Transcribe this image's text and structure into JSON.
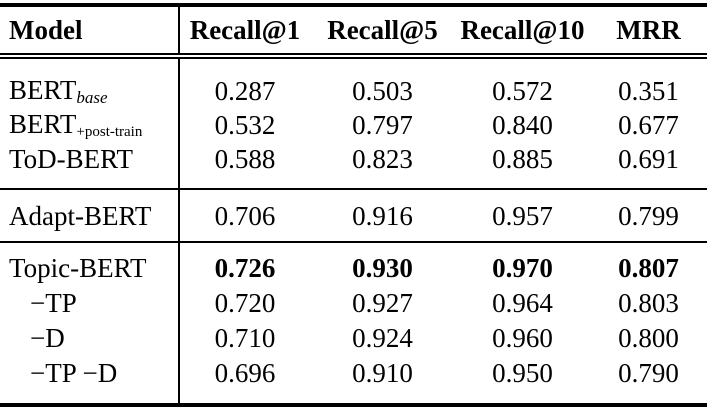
{
  "page": {
    "background": "#ffffff",
    "text_color": "#000000",
    "rule_color": "#000000"
  },
  "table": {
    "header": {
      "model_col": "Model",
      "metric_cols": [
        "Recall@1",
        "Recall@5",
        "Recall@10",
        "MRR"
      ]
    },
    "sections": [
      {
        "rows": [
          {
            "name": "BERT",
            "sub": "base",
            "values": [
              "0.287",
              "0.503",
              "0.572",
              "0.351"
            ]
          },
          {
            "name": "BERT",
            "sub": "+post-train",
            "values": [
              "0.532",
              "0.797",
              "0.840",
              "0.677"
            ]
          },
          {
            "name": "ToD-BERT",
            "values": [
              "0.588",
              "0.823",
              "0.885",
              "0.691"
            ]
          }
        ]
      },
      {
        "rows": [
          {
            "name": "Adapt-BERT",
            "values": [
              "0.706",
              "0.916",
              "0.957",
              "0.799"
            ]
          }
        ]
      },
      {
        "rows": [
          {
            "name": "Topic-BERT",
            "values": [
              "0.726",
              "0.930",
              "0.970",
              "0.807"
            ]
          },
          {
            "name": "−TP",
            "values": [
              "0.720",
              "0.927",
              "0.964",
              "0.803"
            ]
          },
          {
            "name": "−D",
            "values": [
              "0.710",
              "0.924",
              "0.960",
              "0.800"
            ]
          },
          {
            "name": "−TP −D",
            "values": [
              "0.696",
              "0.910",
              "0.950",
              "0.790"
            ]
          }
        ]
      }
    ]
  }
}
